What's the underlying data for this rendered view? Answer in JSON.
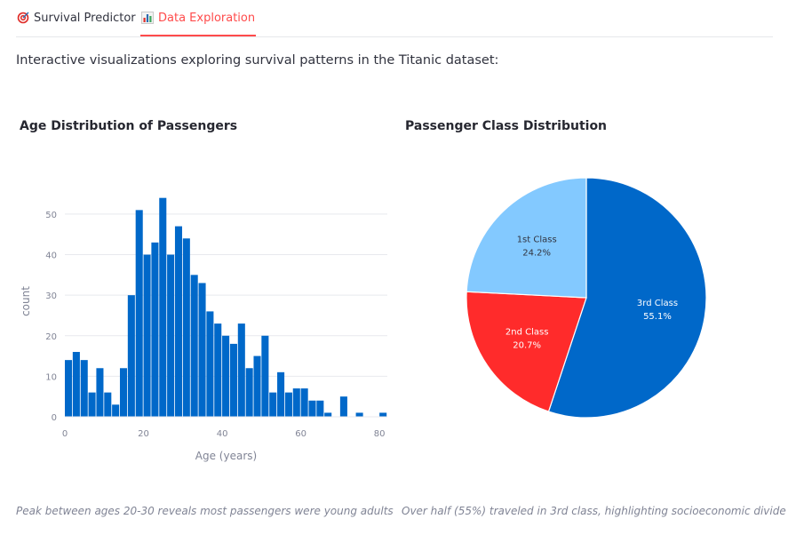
{
  "tabs": [
    {
      "label": "Survival Predictor",
      "icon": "target-icon",
      "active": false
    },
    {
      "label": "Data Exploration",
      "icon": "bar-chart-icon",
      "active": true
    }
  ],
  "intro_text": "Interactive visualizations exploring survival patterns in the Titanic dataset:",
  "accent_color": "#ff4b4b",
  "captions": {
    "age": "Peak between ages 20-30 reveals most passengers were young adults",
    "class": "Over half (55%) traveled in 3rd class, highlighting socioeconomic divide"
  },
  "chart_data": [
    {
      "type": "bar",
      "title": "Age Distribution of Passengers",
      "xlabel": "Age (years)",
      "ylabel": "count",
      "xlim": [
        0,
        82
      ],
      "ylim": [
        0,
        57
      ],
      "xticks": [
        0,
        20,
        40,
        60,
        80
      ],
      "yticks": [
        0,
        10,
        20,
        30,
        40,
        50
      ],
      "grid": true,
      "color": "#0068c9",
      "bin_width": 2,
      "bins_start": [
        0,
        2,
        4,
        6,
        8,
        10,
        12,
        14,
        16,
        18,
        20,
        22,
        24,
        26,
        28,
        30,
        32,
        34,
        36,
        38,
        40,
        42,
        44,
        46,
        48,
        50,
        52,
        54,
        56,
        58,
        60,
        62,
        64,
        66,
        68,
        70,
        72,
        74,
        76,
        78,
        80
      ],
      "values": [
        14,
        16,
        14,
        6,
        12,
        6,
        3,
        12,
        30,
        51,
        40,
        43,
        54,
        40,
        47,
        44,
        35,
        33,
        26,
        23,
        20,
        18,
        23,
        12,
        15,
        20,
        6,
        11,
        6,
        7,
        7,
        4,
        4,
        1,
        0,
        5,
        0,
        1,
        0,
        0,
        1
      ]
    },
    {
      "type": "pie",
      "title": "Passenger Class Distribution",
      "slices": [
        {
          "label": "3rd Class",
          "value": 55.1,
          "text": "55.1%",
          "color": "#0068c9"
        },
        {
          "label": "2nd Class",
          "value": 20.7,
          "text": "20.7%",
          "color": "#ff2b2b"
        },
        {
          "label": "1st Class",
          "value": 24.2,
          "text": "24.2%",
          "color": "#83c9ff"
        }
      ]
    }
  ]
}
